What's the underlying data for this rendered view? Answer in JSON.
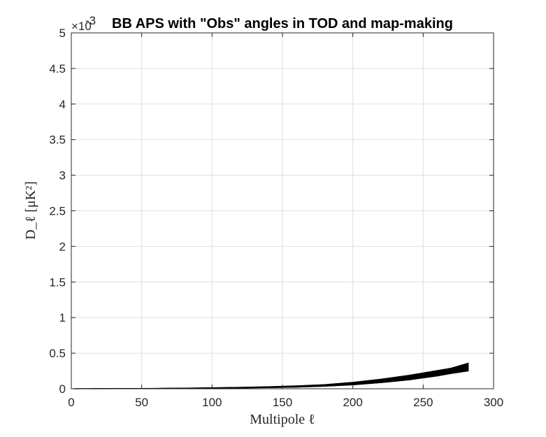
{
  "chart_data": {
    "type": "line",
    "title": "BB APS with \"Obs\" angles in TOD and map-making",
    "xlabel": "Multipole ℓ",
    "ylabel": "D_ℓ [μK²]",
    "y_exponent_label": "×10",
    "y_exponent_power": "-3",
    "xlim": [
      0,
      300
    ],
    "ylim": [
      0,
      5
    ],
    "xticks": [
      "0",
      "50",
      "100",
      "150",
      "200",
      "250",
      "300"
    ],
    "yticks": [
      "0",
      "0.5",
      "1",
      "1.5",
      "2",
      "2.5",
      "3",
      "3.5",
      "4",
      "4.5",
      "5"
    ],
    "grid": true,
    "line_color": "#000000",
    "band": {
      "x": [
        2,
        30,
        60,
        80,
        100,
        120,
        140,
        160,
        180,
        200,
        220,
        240,
        260,
        270,
        282
      ],
      "lower": [
        0.0,
        0.0005,
        0.002,
        0.004,
        0.007,
        0.011,
        0.016,
        0.023,
        0.035,
        0.055,
        0.085,
        0.125,
        0.18,
        0.215,
        0.25
      ],
      "upper": [
        0.0005,
        0.002,
        0.005,
        0.009,
        0.014,
        0.02,
        0.028,
        0.04,
        0.058,
        0.09,
        0.135,
        0.19,
        0.255,
        0.29,
        0.36
      ]
    }
  }
}
